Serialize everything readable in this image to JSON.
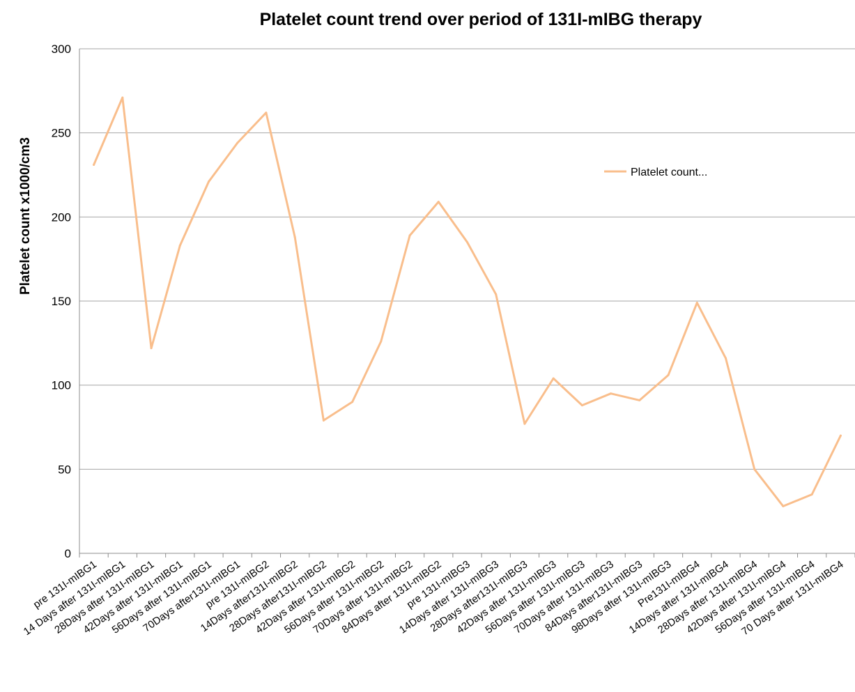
{
  "chart_data": {
    "type": "line",
    "title": "Platelet count trend over period of 131I-mIBG therapy",
    "ylabel": "Platelet count x1000/cm3",
    "xlabel": "",
    "ylim": [
      0,
      300
    ],
    "yticks": [
      0,
      50,
      100,
      150,
      200,
      250,
      300
    ],
    "grid": true,
    "legend_position": "right",
    "categories": [
      "pre 131I-mIBG1",
      "14 Days after 131I-mIBG1",
      "28Days after 131I-mIBG1",
      "42Days after 131I-mIBG1",
      "56Days after 131I-mIBG1",
      "70Days after131I-mIBG1",
      "pre 131I-mIBG2",
      "14Days after131I-mIBG2",
      "28Days after131I-mIBG2",
      "42Days after 131I-mIBG2",
      "56Days after 131I-mIBG2",
      "70Days after 131I-mIBG2",
      "84Days after 131I-mIBG2",
      "pre 131I-mIBG3",
      "14Days after 131I-mIBG3",
      "28Days after131I-mIBG3",
      "42Days after 131I-mIBG3",
      "56Days after 131I-mIBG3",
      "70Days after 131I-mIBG3",
      "84Days after131I-mIBG3",
      "98Days after 131I-mIBG3",
      "Pre131I-mIBG4",
      "14Days after 131I-mIBG4",
      "28Days after 131I-mIBG4",
      "42Days after 131I-mIBG4",
      "56Days after 131I-mIBG4",
      "70 Days after 131I-mIBG4"
    ],
    "series": [
      {
        "name": "Platelet count...",
        "color": "#f9be8c",
        "values": [
          231,
          271,
          122,
          183,
          221,
          244,
          262,
          188,
          79,
          90,
          126,
          189,
          209,
          185,
          154,
          77,
          104,
          88,
          95,
          91,
          106,
          149,
          116,
          50,
          28,
          35,
          70
        ]
      }
    ]
  }
}
